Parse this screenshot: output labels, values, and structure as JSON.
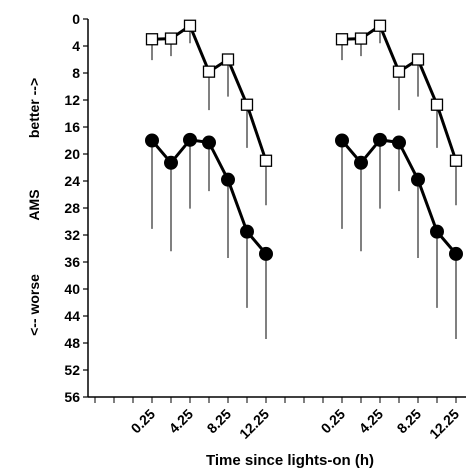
{
  "chart_data": {
    "type": "line",
    "title": "",
    "xlabel": "Time since lights-on (h)",
    "ylabel_parts": {
      "top": "better -->",
      "middle": "AMS",
      "bottom": "<-- worse"
    },
    "y_reversed": true,
    "ylim": [
      0,
      56
    ],
    "y_ticks": [
      0,
      4,
      8,
      12,
      16,
      20,
      24,
      28,
      32,
      36,
      40,
      44,
      48,
      52,
      56
    ],
    "x_tick_labels": [
      "0.25",
      "4.25",
      "8.25",
      "12.25"
    ],
    "x_ticks_hours": [
      0.25,
      4.25,
      8.25,
      12.25
    ],
    "panels": [
      {
        "x": [
          0.25,
          2.25,
          4.25,
          6.25,
          8.25,
          10.25,
          12.25
        ],
        "series": [
          {
            "marker": "open-square",
            "values": [
              3.0,
              2.9,
              1.0,
              7.8,
              6.0,
              12.7,
              21.0
            ],
            "errors": [
              3.1,
              2.6,
              2.6,
              5.7,
              5.5,
              6.4,
              6.6
            ]
          },
          {
            "marker": "filled-circle",
            "values": [
              18.0,
              21.3,
              17.9,
              18.3,
              23.8,
              31.5,
              34.8
            ],
            "errors": [
              13.1,
              13.1,
              10.2,
              7.2,
              11.6,
              11.3,
              12.6
            ]
          }
        ]
      },
      {
        "x": [
          0.25,
          2.25,
          4.25,
          6.25,
          8.25,
          10.25,
          12.25
        ],
        "series": [
          {
            "marker": "open-square",
            "values": [
              3.0,
              2.9,
              1.0,
              7.8,
              6.0,
              12.7,
              21.0
            ],
            "errors": [
              3.1,
              2.6,
              2.6,
              5.7,
              5.5,
              6.4,
              6.6
            ]
          },
          {
            "marker": "filled-circle",
            "values": [
              18.0,
              21.3,
              17.9,
              18.3,
              23.8,
              31.5,
              34.8
            ],
            "errors": [
              13.1,
              13.1,
              10.2,
              7.2,
              11.6,
              11.3,
              12.6
            ]
          }
        ]
      }
    ],
    "grid": false,
    "legend": "none",
    "colors": {
      "line": "#000000",
      "open_fill": "#ffffff",
      "filled_fill": "#000000"
    }
  }
}
